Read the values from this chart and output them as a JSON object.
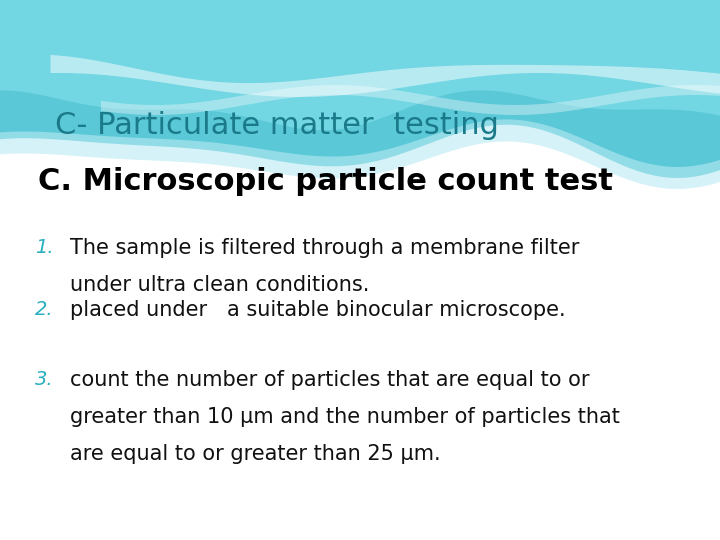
{
  "title": "C- Particulate matter  testing",
  "title_color": "#1a7a8a",
  "subtitle": "C. Microscopic particle count test",
  "subtitle_color": "#000000",
  "items": [
    {
      "number": "1.",
      "number_color": "#29afc0",
      "lines": [
        "The sample is filtered through a membrane filter",
        "under ultra clean conditions."
      ]
    },
    {
      "number": "2.",
      "number_color": "#29afc0",
      "lines": [
        "placed under   a suitable binocular microscope."
      ]
    },
    {
      "number": "3.",
      "number_color": "#29afc0",
      "lines": [
        "count the number of particles that are equal to or",
        "greater than 10 μm and the number of particles that",
        "are equal to or greater than 25 μm."
      ]
    }
  ],
  "bg_color": "#f0f8fa",
  "title_fontsize": 22,
  "subtitle_fontsize": 22,
  "item_fontsize": 15,
  "number_fontsize": 14
}
